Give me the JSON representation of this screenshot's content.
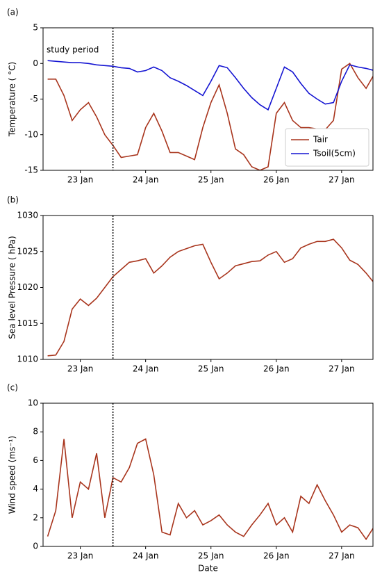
{
  "chart_data": [
    {
      "type": "line",
      "panel_label": "(a)",
      "annotation": "study period",
      "ylabel": "Temperature ( °C)",
      "x": [
        22.5,
        22.625,
        22.75,
        22.875,
        23.0,
        23.125,
        23.25,
        23.375,
        23.5,
        23.625,
        23.75,
        23.875,
        24.0,
        24.125,
        24.25,
        24.375,
        24.5,
        24.625,
        24.75,
        24.875,
        25.0,
        25.125,
        25.25,
        25.375,
        25.5,
        25.625,
        25.75,
        25.875,
        26.0,
        26.125,
        26.25,
        26.375,
        26.5,
        26.625,
        26.75,
        26.875,
        27.0,
        27.125,
        27.25,
        27.375,
        27.5
      ],
      "series": [
        {
          "name": "Tair",
          "color": "#a8341c",
          "values": [
            -2.2,
            -2.2,
            -4.5,
            -8,
            -6.5,
            -5.5,
            -7.5,
            -10,
            -11.5,
            -13.2,
            -13,
            -12.8,
            -9,
            -7,
            -9.5,
            -12.5,
            -12.5,
            -13,
            -13.5,
            -9,
            -5.5,
            -3,
            -7,
            -12,
            -12.8,
            -14.5,
            -15,
            -14.5,
            -7,
            -5.5,
            -8,
            -9,
            -9,
            -9.2,
            -9.3,
            -8,
            -0.8,
            0,
            -2,
            -3.5,
            -1.5
          ]
        },
        {
          "name": "Tsoil(5cm)",
          "color": "#1414d2",
          "values": [
            0.4,
            0.3,
            0.2,
            0.1,
            0.1,
            0.0,
            -0.2,
            -0.3,
            -0.4,
            -0.6,
            -0.7,
            -1.2,
            -1.0,
            -0.5,
            -1.0,
            -2.0,
            -2.5,
            -3.1,
            -3.8,
            -4.5,
            -2.5,
            -0.3,
            -0.6,
            -2.0,
            -3.5,
            -4.8,
            -5.8,
            -6.5,
            -3.5,
            -0.5,
            -1.2,
            -2.8,
            -4.2,
            -5.0,
            -5.7,
            -5.5,
            -2.5,
            -0.2,
            -0.5,
            -0.7,
            -1.0
          ]
        }
      ],
      "xlim": [
        22.43,
        27.48
      ],
      "xticks": [
        {
          "value": 23,
          "label": "23 Jan"
        },
        {
          "value": 24,
          "label": "24 Jan"
        },
        {
          "value": 25,
          "label": "25 Jan"
        },
        {
          "value": 26,
          "label": "26 Jan"
        },
        {
          "value": 27,
          "label": "27 Jan"
        }
      ],
      "ylim": [
        -15,
        5
      ],
      "yticks": [
        -15,
        -10,
        -5,
        0,
        5
      ],
      "vline": 23.5,
      "legend": "lower right"
    },
    {
      "type": "line",
      "panel_label": "(b)",
      "ylabel": "Sea level Pressure ( hPa)",
      "x": [
        22.5,
        22.625,
        22.75,
        22.875,
        23.0,
        23.125,
        23.25,
        23.375,
        23.5,
        23.625,
        23.75,
        23.875,
        24.0,
        24.125,
        24.25,
        24.375,
        24.5,
        24.625,
        24.75,
        24.875,
        25.0,
        25.125,
        25.25,
        25.375,
        25.5,
        25.625,
        25.75,
        25.875,
        26.0,
        26.125,
        26.25,
        26.375,
        26.5,
        26.625,
        26.75,
        26.875,
        27.0,
        27.125,
        27.25,
        27.375,
        27.5
      ],
      "series": [
        {
          "name": "Pressure",
          "color": "#a8341c",
          "values": [
            1010.5,
            1010.6,
            1012.5,
            1017,
            1018.4,
            1017.5,
            1018.5,
            1020,
            1021.5,
            1022.5,
            1023.5,
            1023.7,
            1024,
            1022,
            1023,
            1024.2,
            1025,
            1025.4,
            1025.8,
            1026,
            1023.5,
            1021.2,
            1022,
            1023,
            1023.3,
            1023.6,
            1023.7,
            1024.5,
            1025.0,
            1023.5,
            1024,
            1025.5,
            1026,
            1026.4,
            1026.4,
            1026.7,
            1025.5,
            1023.8,
            1023.2,
            1022,
            1020.6
          ]
        }
      ],
      "xlim": [
        22.43,
        27.48
      ],
      "xticks": [
        {
          "value": 23,
          "label": "23 Jan"
        },
        {
          "value": 24,
          "label": "24 Jan"
        },
        {
          "value": 25,
          "label": "25 Jan"
        },
        {
          "value": 26,
          "label": "26 Jan"
        },
        {
          "value": 27,
          "label": "27 Jan"
        }
      ],
      "ylim": [
        1010,
        1030
      ],
      "yticks": [
        1010,
        1015,
        1020,
        1025,
        1030
      ],
      "vline": 23.5
    },
    {
      "type": "line",
      "panel_label": "(c)",
      "ylabel": "Wind speed (ms⁻¹)",
      "xlabel": "Date",
      "x": [
        22.5,
        22.625,
        22.75,
        22.875,
        23.0,
        23.125,
        23.25,
        23.375,
        23.5,
        23.625,
        23.75,
        23.875,
        24.0,
        24.125,
        24.25,
        24.375,
        24.5,
        24.625,
        24.75,
        24.875,
        25.0,
        25.125,
        25.25,
        25.375,
        25.5,
        25.625,
        25.75,
        25.875,
        26.0,
        26.125,
        26.25,
        26.375,
        26.5,
        26.625,
        26.75,
        26.875,
        27.0,
        27.125,
        27.25,
        27.375,
        27.5
      ],
      "series": [
        {
          "name": "Wind",
          "color": "#a8341c",
          "values": [
            0.7,
            2.5,
            7.5,
            2,
            4.5,
            4.0,
            6.5,
            2.0,
            4.8,
            4.5,
            5.5,
            7.2,
            7.5,
            5.0,
            1.0,
            0.8,
            3.0,
            2.0,
            2.5,
            1.5,
            1.8,
            2.2,
            1.5,
            1.0,
            0.7,
            1.5,
            2.2,
            3.0,
            1.5,
            2.0,
            1.0,
            3.5,
            3.0,
            4.3,
            3.2,
            2.2,
            1.0,
            1.5,
            1.3,
            0.5,
            1.4
          ]
        }
      ],
      "xlim": [
        22.43,
        27.48
      ],
      "xticks": [
        {
          "value": 23,
          "label": "23 Jan"
        },
        {
          "value": 24,
          "label": "24 Jan"
        },
        {
          "value": 25,
          "label": "25 Jan"
        },
        {
          "value": 26,
          "label": "26 Jan"
        },
        {
          "value": 27,
          "label": "27 Jan"
        }
      ],
      "ylim": [
        0,
        10
      ],
      "yticks": [
        0,
        2,
        4,
        6,
        8,
        10
      ],
      "vline": 23.5
    }
  ]
}
